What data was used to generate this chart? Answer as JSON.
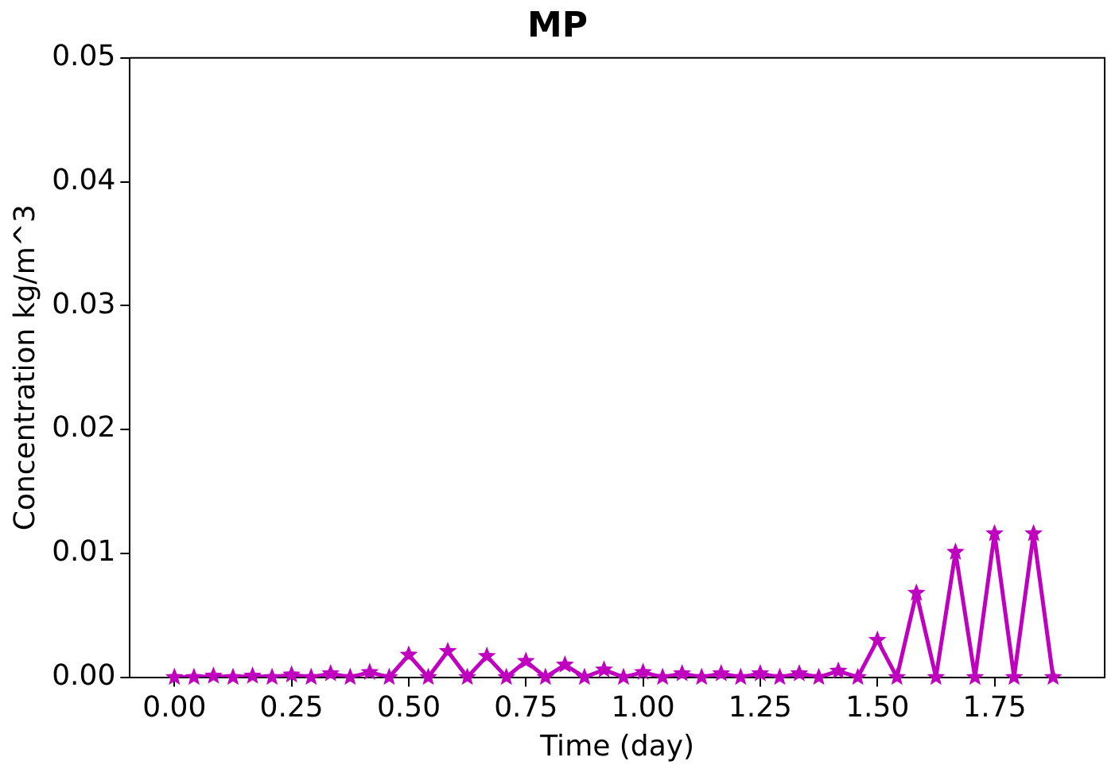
{
  "chart_data": {
    "type": "line",
    "title": "MP",
    "xlabel": "Time (day)",
    "ylabel": "Concentration kg/m^3",
    "x": [
      0,
      0.0417,
      0.0833,
      0.125,
      0.1667,
      0.2083,
      0.25,
      0.2917,
      0.3333,
      0.375,
      0.4167,
      0.4583,
      0.5,
      0.5417,
      0.5833,
      0.625,
      0.6667,
      0.7083,
      0.75,
      0.7917,
      0.8333,
      0.875,
      0.9167,
      0.9583,
      1,
      1.0417,
      1.0833,
      1.125,
      1.1667,
      1.2083,
      1.25,
      1.2917,
      1.3333,
      1.375,
      1.4167,
      1.4583,
      1.5,
      1.5417,
      1.5833,
      1.625,
      1.6667,
      1.7083,
      1.75,
      1.7917,
      1.8333,
      1.875
    ],
    "series": [
      {
        "color": "#bf00bf",
        "values": [
          0,
          0,
          0.0001,
          0,
          0.0001,
          0,
          0.0002,
          0,
          0.0003,
          0,
          0.0004,
          0,
          0.0018,
          0,
          0.0021,
          0,
          0.0017,
          0,
          0.0013,
          0,
          0.001,
          0,
          0.0006,
          0,
          0.0004,
          0,
          0.0003,
          0,
          0.0003,
          0,
          0.0003,
          0,
          0.0003,
          0,
          0.0005,
          0,
          0.003,
          0,
          0.0068,
          0,
          0.0101,
          0,
          0.0116,
          0,
          0.0116,
          0
        ]
      }
    ],
    "xlim": [
      -0.095,
      1.985
    ],
    "xticks": [
      {
        "value": 0,
        "label": "0.00"
      },
      {
        "value": 0.25,
        "label": "0.25"
      },
      {
        "value": 0.5,
        "label": "0.50"
      },
      {
        "value": 0.75,
        "label": "0.75"
      },
      {
        "value": 1,
        "label": "1.00"
      },
      {
        "value": 1.25,
        "label": "1.25"
      },
      {
        "value": 1.5,
        "label": "1.50"
      },
      {
        "value": 1.75,
        "label": "1.75"
      }
    ],
    "ylim": [
      0,
      0.05
    ],
    "yticks": [
      {
        "value": 0,
        "label": "0.00"
      },
      {
        "value": 0.01,
        "label": "0.01"
      },
      {
        "value": 0.02,
        "label": "0.02"
      },
      {
        "value": 0.03,
        "label": "0.03"
      },
      {
        "value": 0.04,
        "label": "0.04"
      },
      {
        "value": 0.05,
        "label": "0.05"
      }
    ],
    "marker": "star",
    "line_style": "solid",
    "grid": false,
    "legend": false
  }
}
